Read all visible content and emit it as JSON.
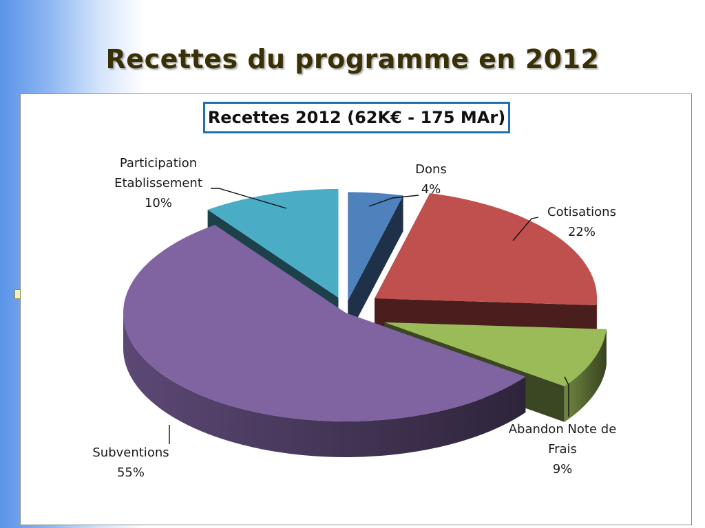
{
  "slide": {
    "title": "Recettes du programme en 2012"
  },
  "colors": {
    "Dons": "#4f81bd",
    "Cotisations": "#c0504d",
    "Abandon Note de Frais": "#9bbb59",
    "Subventions": "#8064a2",
    "Participation Etablissement": "#4bacc6",
    "title_border": "#1f6fb4"
  },
  "chart_data": {
    "type": "pie",
    "title": "Recettes 2012 (62K€ - 175 MAr)",
    "style": "3d-exploded",
    "slices": [
      {
        "label": "Dons",
        "value": 4,
        "pct_label": "4%",
        "label_lines": [
          "Dons"
        ]
      },
      {
        "label": "Cotisations",
        "value": 22,
        "pct_label": "22%",
        "label_lines": [
          "Cotisations"
        ]
      },
      {
        "label": "Abandon Note de Frais",
        "value": 9,
        "pct_label": "9%",
        "label_lines": [
          "Abandon Note de",
          "Frais"
        ]
      },
      {
        "label": "Subventions",
        "value": 55,
        "pct_label": "55%",
        "label_lines": [
          "Subventions"
        ]
      },
      {
        "label": "Participation Etablissement",
        "value": 10,
        "pct_label": "10%",
        "label_lines": [
          "Participation",
          "Etablissement"
        ]
      }
    ],
    "legend": "none",
    "data_labels": "outside-with-leaders"
  }
}
